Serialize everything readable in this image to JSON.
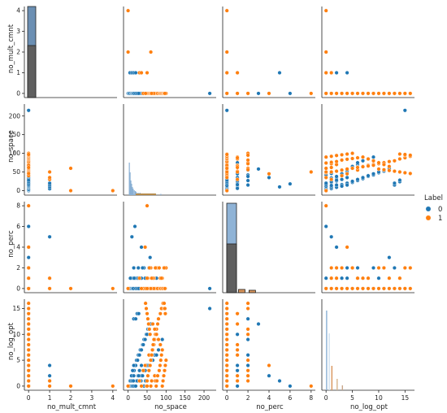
{
  "chart_data": {
    "type": "scatter",
    "kind": "pairplot",
    "variables": [
      "no_mult_cmnt",
      "no_space",
      "no_perc",
      "no_log_opt"
    ],
    "axes": {
      "no_mult_cmnt": {
        "lim": [
          -0.2,
          4.2
        ],
        "ticks": [
          0,
          1,
          2,
          3,
          4
        ]
      },
      "no_space": {
        "lim": [
          -12,
          232
        ],
        "ticks": [
          0,
          50,
          100,
          150,
          200
        ]
      },
      "no_perc": {
        "lim": [
          -0.4,
          8.4
        ],
        "ticks": [
          0,
          2,
          4,
          6,
          8
        ]
      },
      "no_log_opt": {
        "lim": [
          -0.8,
          16.8
        ],
        "ticks": [
          0,
          5,
          10,
          15
        ]
      }
    },
    "legend": {
      "title": "Label",
      "placement": "right",
      "entries": [
        {
          "name": "0",
          "color": "#1f77b4"
        },
        {
          "name": "1",
          "color": "#ff7f0e"
        }
      ]
    },
    "series": [
      {
        "name": "0",
        "color": "#1f77b4",
        "points": [
          [
            0,
            0,
            0,
            0
          ],
          [
            0,
            2,
            0,
            0
          ],
          [
            0,
            5,
            0,
            1
          ],
          [
            0,
            8,
            1,
            1
          ],
          [
            0,
            10,
            0,
            2
          ],
          [
            0,
            12,
            0,
            2
          ],
          [
            0,
            14,
            1,
            3
          ],
          [
            0,
            16,
            0,
            3
          ],
          [
            0,
            18,
            0,
            4
          ],
          [
            0,
            20,
            1,
            4
          ],
          [
            0,
            22,
            0,
            5
          ],
          [
            0,
            25,
            0,
            5
          ],
          [
            0,
            27,
            2,
            6
          ],
          [
            0,
            30,
            0,
            6
          ],
          [
            0,
            32,
            0,
            7
          ],
          [
            0,
            35,
            1,
            7
          ],
          [
            0,
            38,
            0,
            8
          ],
          [
            0,
            40,
            0,
            8
          ],
          [
            0,
            42,
            2,
            9
          ],
          [
            0,
            45,
            0,
            9
          ],
          [
            0,
            48,
            1,
            10
          ],
          [
            0,
            50,
            0,
            10
          ],
          [
            0,
            52,
            0,
            11
          ],
          [
            0,
            55,
            0,
            11
          ],
          [
            0,
            58,
            3,
            12
          ],
          [
            0,
            60,
            0,
            12
          ],
          [
            0,
            15,
            2,
            13
          ],
          [
            0,
            20,
            0,
            13
          ],
          [
            0,
            24,
            1,
            14
          ],
          [
            0,
            28,
            0,
            14
          ],
          [
            0,
            215,
            0,
            15
          ],
          [
            0,
            35,
            4,
            2
          ],
          [
            0,
            40,
            0,
            3
          ],
          [
            0,
            45,
            1,
            3
          ],
          [
            0,
            50,
            0,
            4
          ],
          [
            0,
            55,
            2,
            4
          ],
          [
            0,
            60,
            0,
            5
          ],
          [
            0,
            65,
            0,
            5
          ],
          [
            0,
            70,
            0,
            6
          ],
          [
            0,
            75,
            1,
            6
          ],
          [
            0,
            80,
            0,
            7
          ],
          [
            0,
            85,
            0,
            8
          ],
          [
            0,
            90,
            0,
            9
          ],
          [
            0,
            18,
            6,
            0
          ],
          [
            0,
            22,
            0,
            1
          ],
          [
            0,
            26,
            1,
            2
          ],
          [
            0,
            30,
            0,
            3
          ],
          [
            0,
            34,
            0,
            1
          ],
          [
            0,
            38,
            2,
            2
          ],
          [
            0,
            42,
            0,
            0
          ],
          [
            0,
            46,
            0,
            1
          ],
          [
            0,
            3,
            0,
            0
          ],
          [
            0,
            6,
            1,
            1
          ],
          [
            0,
            9,
            0,
            2
          ],
          [
            0,
            12,
            0,
            3
          ],
          [
            0,
            15,
            0,
            4
          ],
          [
            1,
            5,
            0,
            0
          ],
          [
            1,
            10,
            5,
            1
          ],
          [
            1,
            15,
            0,
            2
          ],
          [
            1,
            20,
            0,
            0
          ],
          [
            1,
            30,
            1,
            1
          ],
          [
            1,
            35,
            0,
            4
          ],
          [
            0,
            10,
            0,
            0
          ],
          [
            0,
            12,
            0,
            0
          ],
          [
            0,
            14,
            0,
            1
          ],
          [
            0,
            16,
            1,
            0
          ],
          [
            0,
            20,
            0,
            0
          ],
          [
            0,
            24,
            0,
            1
          ],
          [
            0,
            28,
            0,
            2
          ]
        ]
      },
      {
        "name": "1",
        "color": "#ff7f0e",
        "points": [
          [
            0,
            48,
            0,
            0
          ],
          [
            0,
            50,
            0,
            1
          ],
          [
            0,
            52,
            1,
            2
          ],
          [
            0,
            55,
            0,
            3
          ],
          [
            0,
            58,
            0,
            4
          ],
          [
            0,
            60,
            2,
            5
          ],
          [
            0,
            63,
            0,
            6
          ],
          [
            0,
            65,
            0,
            7
          ],
          [
            0,
            68,
            1,
            8
          ],
          [
            0,
            70,
            0,
            9
          ],
          [
            0,
            72,
            0,
            10
          ],
          [
            0,
            75,
            2,
            11
          ],
          [
            0,
            78,
            0,
            12
          ],
          [
            0,
            80,
            0,
            13
          ],
          [
            0,
            85,
            1,
            14
          ],
          [
            0,
            88,
            0,
            15
          ],
          [
            0,
            92,
            0,
            16
          ],
          [
            0,
            95,
            2,
            15
          ],
          [
            0,
            98,
            0,
            14
          ],
          [
            0,
            65,
            1,
            12
          ],
          [
            0,
            70,
            0,
            11
          ],
          [
            0,
            75,
            2,
            10
          ],
          [
            0,
            80,
            0,
            9
          ],
          [
            0,
            85,
            0,
            8
          ],
          [
            0,
            90,
            1,
            7
          ],
          [
            0,
            55,
            0,
            6
          ],
          [
            0,
            60,
            0,
            5
          ],
          [
            0,
            45,
            4,
            4
          ],
          [
            0,
            40,
            0,
            3
          ],
          [
            0,
            50,
            8,
            0
          ],
          [
            0,
            70,
            0,
            2
          ],
          [
            0,
            72,
            2,
            1
          ],
          [
            0,
            74,
            0,
            0
          ],
          [
            0,
            76,
            0,
            1
          ],
          [
            0,
            78,
            0,
            2
          ],
          [
            0,
            82,
            2,
            3
          ],
          [
            0,
            84,
            0,
            4
          ],
          [
            0,
            86,
            0,
            5
          ],
          [
            0,
            88,
            1,
            6
          ],
          [
            0,
            90,
            0,
            0
          ],
          [
            0,
            92,
            0,
            1
          ],
          [
            0,
            94,
            2,
            2
          ],
          [
            0,
            96,
            0,
            3
          ],
          [
            0,
            98,
            0,
            4
          ],
          [
            0,
            100,
            2,
            5
          ],
          [
            0,
            62,
            0,
            6
          ],
          [
            0,
            64,
            0,
            7
          ],
          [
            0,
            66,
            1,
            8
          ],
          [
            0,
            68,
            0,
            9
          ],
          [
            0,
            58,
            0,
            10
          ],
          [
            0,
            56,
            2,
            11
          ],
          [
            0,
            54,
            0,
            12
          ],
          [
            0,
            52,
            0,
            13
          ],
          [
            0,
            50,
            1,
            14
          ],
          [
            0,
            48,
            0,
            15
          ],
          [
            0,
            46,
            0,
            16
          ],
          [
            0,
            95,
            2,
            16
          ],
          [
            0,
            97,
            0,
            15
          ],
          [
            0,
            60,
            0,
            0
          ],
          [
            0,
            62,
            1,
            1
          ],
          [
            1,
            50,
            0,
            0
          ],
          [
            1,
            30,
            1,
            1
          ],
          [
            1,
            35,
            0,
            0
          ],
          [
            2,
            0,
            0,
            0
          ],
          [
            2,
            60,
            0,
            0
          ],
          [
            4,
            0,
            0,
            0
          ]
        ]
      }
    ],
    "diagonal": "histogram"
  }
}
